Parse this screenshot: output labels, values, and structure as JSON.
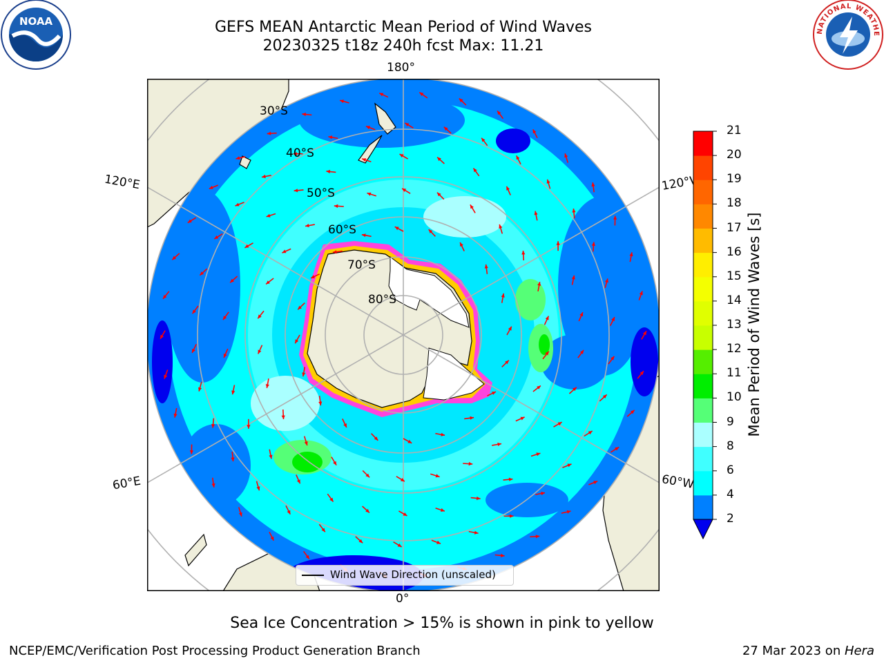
{
  "title": {
    "line1": "GEFS MEAN Antarctic Mean Period of Wind Waves",
    "line2": "20230325 t18z 240h fcst   Max: 11.21"
  },
  "map": {
    "longitude_labels": {
      "top": "180°",
      "bottom": "0°",
      "upper_left": "120°E",
      "lower_left": "60°E",
      "upper_right": "120°W",
      "lower_right": "60°W"
    },
    "latitude_labels": [
      "30°S",
      "40°S",
      "50°S",
      "60°S",
      "70°S",
      "80°S"
    ],
    "colors": {
      "land": "#efeedb",
      "sea_ice_land": "#ffffff",
      "sea_ice_edge": [
        "#ff44dd",
        "#ffcc00"
      ],
      "graticule": "#b0b0b0",
      "arrows": "#ff0000"
    }
  },
  "legend": {
    "label": "Wind Wave Direction (unscaled)"
  },
  "colorbar": {
    "title": "Mean Period of Wind Waves [s]",
    "ticks": [
      "2",
      "4",
      "6",
      "8",
      "9",
      "10",
      "11",
      "12",
      "13",
      "14",
      "15",
      "16",
      "17",
      "18",
      "19",
      "20",
      "21"
    ],
    "bins": [
      {
        "from": 2,
        "to": 4,
        "color": "#0080ff"
      },
      {
        "from": 4,
        "to": 6,
        "color": "#00ffff"
      },
      {
        "from": 6,
        "to": 8,
        "color": "#40ffff"
      },
      {
        "from": 8,
        "to": 9,
        "color": "#aaffff"
      },
      {
        "from": 9,
        "to": 10,
        "color": "#55ff77"
      },
      {
        "from": 10,
        "to": 11,
        "color": "#00ee00"
      },
      {
        "from": 11,
        "to": 12,
        "color": "#55ee00"
      },
      {
        "from": 12,
        "to": 13,
        "color": "#c8ff00"
      },
      {
        "from": 13,
        "to": 14,
        "color": "#e0ff00"
      },
      {
        "from": 14,
        "to": 15,
        "color": "#f4ff00"
      },
      {
        "from": 15,
        "to": 16,
        "color": "#ffee00"
      },
      {
        "from": 16,
        "to": 17,
        "color": "#ffbb00"
      },
      {
        "from": 17,
        "to": 18,
        "color": "#ff8800"
      },
      {
        "from": 18,
        "to": 19,
        "color": "#ff6600"
      },
      {
        "from": 19,
        "to": 20,
        "color": "#ff4400"
      },
      {
        "from": 20,
        "to": 21,
        "color": "#ff0000"
      }
    ],
    "under_color": "#0000ee"
  },
  "note": "Sea Ice Concentration > 15% is shown in pink to yellow",
  "footer": {
    "left": "NCEP/EMC/Verification Post Processing Product Generation Branch",
    "date": "27 Mar 2023 on ",
    "machine": "Hera"
  },
  "logos": {
    "noaa_text": "NOAA",
    "nws_text": "NATIONAL WEATHER SERVICE"
  }
}
